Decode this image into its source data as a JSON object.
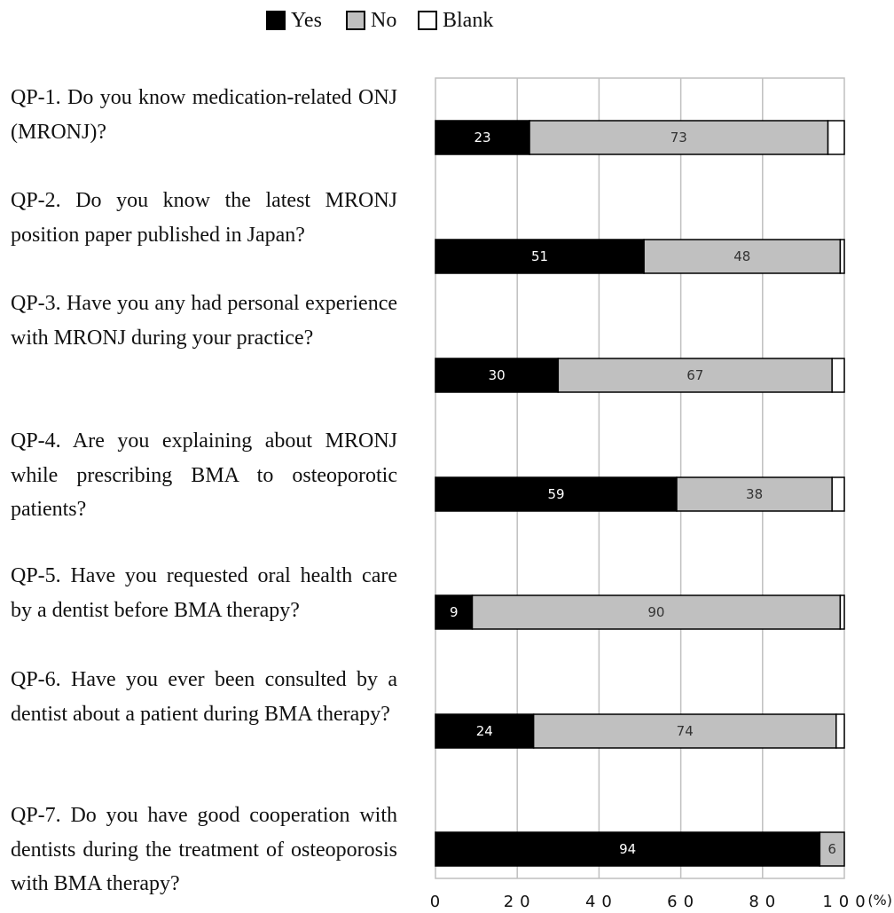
{
  "chart_data": {
    "type": "bar",
    "orientation": "horizontal",
    "stacked": true,
    "xlim": [
      0,
      100
    ],
    "x_unit": "(%)",
    "x_ticks": [
      "0",
      "20",
      "40",
      "60",
      "80",
      "100"
    ],
    "grid": true,
    "legend_position": "top",
    "categories": [
      "QP-1. Do you know medication-related ONJ (MRONJ)?",
      "QP-2. Do you know the latest MRONJ position paper published in Japan?",
      "QP-3. Have you any had personal experience with MRONJ during your practice?",
      "QP-4. Are you explaining about MRONJ while prescribing BMA to osteoporotic patients?",
      "QP-5. Have you requested oral health care by a dentist before BMA therapy?",
      "QP-6. Have you ever been consulted by a dentist about a patient during BMA therapy?",
      "QP-7. Do you have good cooperation with dentists during the treatment of osteoporosis with BMA therapy?"
    ],
    "series": [
      {
        "name": "Yes",
        "color": "#000000",
        "label_color": "#ffffff",
        "values": [
          23,
          51,
          30,
          59,
          9,
          24,
          94
        ]
      },
      {
        "name": "No",
        "color": "#c0c0c0",
        "label_color": "#333333",
        "values": [
          73,
          48,
          67,
          38,
          90,
          74,
          6
        ]
      },
      {
        "name": "Blank",
        "color": "#ffffff",
        "label_color": "#333333",
        "values": [
          4,
          1,
          3,
          3,
          1,
          2,
          0
        ],
        "show_labels": false
      }
    ]
  }
}
